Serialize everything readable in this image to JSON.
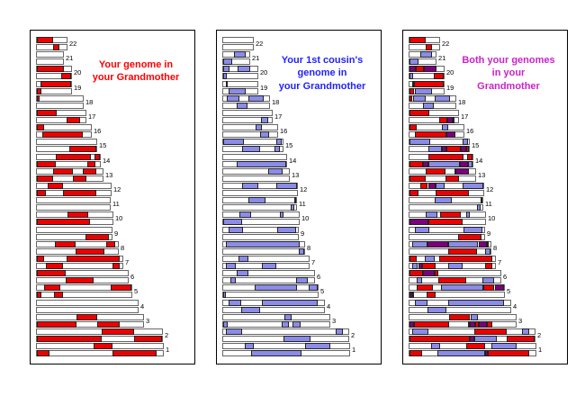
{
  "figure": {
    "background": "#ffffff"
  },
  "panels": [
    {
      "key": "you",
      "mode": "you",
      "title_text": "Your genome in\nyour Grandmother",
      "title_color": "#ff0000"
    },
    {
      "key": "cousin",
      "mode": "cousin",
      "title_text": "Your 1st cousin's\ngenome in\nyour Grandmother",
      "title_color": "#2222ff"
    },
    {
      "key": "both",
      "mode": "both",
      "title_text": "Both your genomes\nin your\nGrandmother",
      "title_color": "#cc22cc"
    }
  ],
  "chart_data": {
    "type": "chromosome-ideogram",
    "legend": {
      "you_color": "#ee0000",
      "cousin_color": "#8b8be8",
      "overlap_color": "#7c007c",
      "empty_color": "#ffffff"
    },
    "units": "percent of chromosome length, two homologous copies (a=top bar, b=bottom bar)",
    "chromosomes": [
      {
        "num": 22,
        "len": 0.235,
        "you": {
          "a": [
            [
              0,
              55
            ]
          ],
          "b": [
            [
              55,
              75
            ]
          ]
        },
        "cousin": {
          "a": [],
          "b": []
        }
      },
      {
        "num": 21,
        "len": 0.205,
        "you": {
          "a": [],
          "b": []
        },
        "cousin": {
          "a": [
            [
              40,
              86
            ]
          ],
          "b": [
            [
              0,
              33
            ]
          ]
        }
      },
      {
        "num": 20,
        "len": 0.27,
        "you": {
          "a": [
            [
              0,
              78
            ]
          ],
          "b": [
            [
              72,
              100
            ]
          ]
        },
        "cousin": {
          "a": [
            [
              0,
              18
            ],
            [
              42,
              78
            ]
          ],
          "b": [
            [
              0,
              10
            ]
          ]
        }
      },
      {
        "num": 19,
        "len": 0.27,
        "you": {
          "a": [
            [
              10,
              100
            ]
          ],
          "b": [
            [
              0,
              12
            ]
          ]
        },
        "cousin": {
          "a": [
            [
              8,
              14
            ]
          ],
          "b": [
            [
              15,
              65
            ]
          ]
        }
      },
      {
        "num": 18,
        "len": 0.365,
        "you": {
          "a": [
            [
              0,
              6
            ]
          ],
          "b": []
        },
        "cousin": {
          "a": [
            [
              7,
              35
            ],
            [
              55,
              88
            ]
          ],
          "b": [
            [
              30,
              52
            ]
          ]
        }
      },
      {
        "num": 17,
        "len": 0.385,
        "you": {
          "a": [
            [
              0,
              40
            ]
          ],
          "b": [
            [
              62,
              88
            ]
          ]
        },
        "cousin": {
          "a": [],
          "b": [
            [
              78,
              92
            ]
          ]
        }
      },
      {
        "num": 16,
        "len": 0.43,
        "you": {
          "a": [
            [
              0,
              13
            ]
          ],
          "b": [
            [
              10,
              85
            ]
          ]
        },
        "cousin": {
          "a": [
            [
              60,
              72
            ]
          ],
          "b": [
            [
              68,
              85
            ]
          ]
        }
      },
      {
        "num": 15,
        "len": 0.47,
        "you": {
          "a": [],
          "b": [
            [
              55,
              100
            ]
          ]
        },
        "cousin": {
          "a": [
            [
              0,
              35
            ],
            [
              90,
              98
            ]
          ],
          "b": [
            [
              32,
              62
            ],
            [
              87,
              95
            ]
          ]
        }
      },
      {
        "num": 14,
        "len": 0.5,
        "you": {
          "a": [
            [
              30,
              85
            ],
            [
              92,
              100
            ]
          ],
          "b": [
            [
              0,
              30
            ],
            [
              80,
              93
            ]
          ]
        },
        "cousin": {
          "a": [],
          "b": [
            [
              22,
              100
            ]
          ]
        }
      },
      {
        "num": 13,
        "len": 0.52,
        "you": {
          "a": [
            [
              25,
              55
            ],
            [
              70,
              90
            ]
          ],
          "b": [
            [
              0,
              25
            ],
            [
              55,
              75
            ]
          ]
        },
        "cousin": {
          "a": [
            [
              68,
              90
            ]
          ],
          "b": []
        }
      },
      {
        "num": 12,
        "len": 0.585,
        "you": {
          "a": [
            [
              15,
              35
            ]
          ],
          "b": [
            [
              0,
              12
            ],
            [
              35,
              80
            ]
          ]
        },
        "cousin": {
          "a": [
            [
              25,
              48
            ],
            [
              72,
              100
            ]
          ],
          "b": []
        }
      },
      {
        "num": 11,
        "len": 0.575,
        "you": {
          "a": [],
          "b": []
        },
        "cousin": {
          "a": [
            [
              35,
              58
            ],
            [
              97,
              100
            ]
          ],
          "b": [
            [
              93,
              97
            ]
          ]
        }
      },
      {
        "num": 10,
        "len": 0.6,
        "you": {
          "a": [
            [
              40,
              68
            ]
          ],
          "b": [
            [
              0,
              70
            ]
          ]
        },
        "cousin": {
          "a": [
            [
              22,
              37
            ],
            [
              75,
              80
            ]
          ],
          "b": [
            [
              0,
              25
            ]
          ]
        }
      },
      {
        "num": 9,
        "len": 0.59,
        "you": {
          "a": [],
          "b": [
            [
              65,
              97
            ]
          ]
        },
        "cousin": {
          "a": [
            [
              7,
              27
            ],
            [
              72,
              97
            ]
          ],
          "b": []
        }
      },
      {
        "num": 8,
        "len": 0.645,
        "you": {
          "a": [
            [
              22,
              48
            ],
            [
              85,
              97
            ]
          ],
          "b": [
            [
              48,
              83
            ]
          ]
        },
        "cousin": {
          "a": [
            [
              3,
              95
            ]
          ],
          "b": [
            [
              93,
              100
            ]
          ]
        }
      },
      {
        "num": 7,
        "len": 0.68,
        "you": {
          "a": [
            [
              0,
              8
            ],
            [
              35,
              97
            ]
          ],
          "b": [
            [
              10,
              30
            ],
            [
              88,
              97
            ]
          ]
        },
        "cousin": {
          "a": [
            [
              18,
              30
            ]
          ],
          "b": [
            [
              3,
              15
            ],
            [
              45,
              62
            ]
          ]
        }
      },
      {
        "num": 6,
        "len": 0.72,
        "you": {
          "a": [
            [
              0,
              32
            ]
          ],
          "b": [
            [
              32,
              62
            ]
          ]
        },
        "cousin": {
          "a": [
            [
              15,
              28
            ]
          ],
          "b": [
            [
              8,
              14
            ],
            [
              80,
              93
            ]
          ]
        }
      },
      {
        "num": 5,
        "len": 0.75,
        "you": {
          "a": [
            [
              8,
              25
            ],
            [
              78,
              100
            ]
          ],
          "b": [
            [
              0,
              5
            ],
            [
              18,
              28
            ]
          ]
        },
        "cousin": {
          "a": [
            [
              33,
              78
            ],
            [
              90,
              100
            ]
          ],
          "b": [
            [
              0,
              3
            ]
          ]
        }
      },
      {
        "num": 4,
        "len": 0.8,
        "you": {
          "a": [],
          "b": []
        },
        "cousin": {
          "a": [
            [
              5,
              18
            ],
            [
              38,
              94
            ]
          ],
          "b": [
            [
              18,
              37
            ]
          ]
        }
      },
      {
        "num": 3,
        "len": 0.84,
        "you": {
          "a": [
            [
              37,
              57
            ]
          ],
          "b": [
            [
              0,
              37
            ],
            [
              57,
              78
            ]
          ]
        },
        "cousin": {
          "a": [
            [
              58,
              64
            ]
          ],
          "b": [
            [
              0,
              4
            ],
            [
              55,
              62
            ],
            [
              65,
              73
            ]
          ]
        }
      },
      {
        "num": 2,
        "len": 0.99,
        "you": {
          "a": [
            [
              52,
              78
            ]
          ],
          "b": [
            [
              0,
              52
            ],
            [
              78,
              100
            ]
          ]
        },
        "cousin": {
          "a": [
            [
              2,
              15
            ],
            [
              90,
              96
            ]
          ],
          "b": [
            [
              48,
              70
            ]
          ]
        }
      },
      {
        "num": 1,
        "len": 1.0,
        "you": {
          "a": [
            [
              45,
              60
            ]
          ],
          "b": [
            [
              0,
              10
            ],
            [
              60,
              95
            ]
          ]
        },
        "cousin": {
          "a": [
            [
              17,
              24
            ],
            [
              65,
              85
            ]
          ],
          "b": [
            [
              22,
              62
            ]
          ]
        }
      }
    ]
  }
}
